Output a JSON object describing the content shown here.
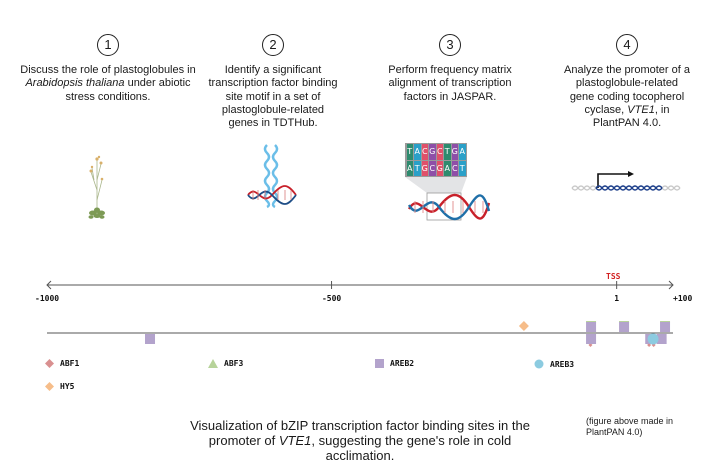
{
  "steps": [
    {
      "number": "1",
      "text_before": "Discuss the role of plastoglobules in ",
      "italic": "Arabidopsis thaliana",
      "text_after": " under abiotic stress conditions."
    },
    {
      "number": "2",
      "text_before": "Identify a significant transcription factor binding site motif in a set of plastoglobule-related genes in TDTHub.",
      "italic": "",
      "text_after": ""
    },
    {
      "number": "3",
      "text_before": "Perform frequency matrix alignment of transcription factors in JASPAR.",
      "italic": "",
      "text_after": ""
    },
    {
      "number": "4",
      "text_before": "Analyze the promoter of a plastoglobule-related gene coding tocopherol cyclase, ",
      "italic": "VTE1",
      "text_after": ", in PlantPAN 4.0."
    }
  ],
  "motif": {
    "top": [
      "T",
      "A",
      "C",
      "G",
      "C",
      "T",
      "G",
      "A"
    ],
    "bottom": [
      "A",
      "T",
      "G",
      "C",
      "G",
      "A",
      "C",
      "T"
    ],
    "colors": [
      "#2e8b6e",
      "#2aa0c8",
      "#e0506a",
      "#8e4fa8",
      "#e0506a",
      "#2e8b6e",
      "#8e4fa8",
      "#2aa0c8"
    ]
  },
  "chart_data": {
    "type": "scatter",
    "title": "",
    "xlabel": "",
    "ylabel": "",
    "xlim": [
      -1000,
      100
    ],
    "ticks": [
      {
        "value": -1000,
        "label": "-1000"
      },
      {
        "value": -500,
        "label": "-500"
      },
      {
        "value": 1,
        "label": "1"
      },
      {
        "value": 100,
        "label": "+100"
      }
    ],
    "tss_label": "TSS",
    "tss_position": 1,
    "series": [
      {
        "name": "ABF1",
        "shape": "diamond",
        "color": "#d99090",
        "sites": [
          {
            "pos": -45,
            "strand": "-"
          },
          {
            "pos": 58,
            "strand": "-"
          },
          {
            "pos": 66,
            "strand": "-"
          }
        ]
      },
      {
        "name": "ABF3",
        "shape": "triangle",
        "color": "#b7d39a",
        "sites": [
          {
            "pos": -44,
            "strand": "+"
          },
          {
            "pos": 14,
            "strand": "+"
          },
          {
            "pos": 86,
            "strand": "+"
          }
        ]
      },
      {
        "name": "AREB2",
        "shape": "square",
        "color": "#b3a3cc",
        "sites": [
          {
            "pos": -819,
            "strand": "-"
          },
          {
            "pos": -44,
            "strand": "+"
          },
          {
            "pos": -44,
            "strand": "-"
          },
          {
            "pos": 14,
            "strand": "+"
          },
          {
            "pos": 86,
            "strand": "+"
          },
          {
            "pos": 60,
            "strand": "-"
          },
          {
            "pos": 80,
            "strand": "-"
          }
        ]
      },
      {
        "name": "AREB3",
        "shape": "circle",
        "color": "#8ccbe0",
        "sites": [
          {
            "pos": 65,
            "strand": "-"
          }
        ]
      },
      {
        "name": "HY5",
        "shape": "diamond",
        "color": "#f6bd8a",
        "sites": [
          {
            "pos": -162,
            "strand": "+"
          }
        ]
      }
    ],
    "legend": [
      "ABF1",
      "ABF3",
      "AREB2",
      "AREB3",
      "HY5"
    ]
  },
  "caption": {
    "before": "Visualization of bZIP transcription factor binding sites in the promoter of ",
    "italic": "VTE1",
    "after": ", suggesting the gene's role in cold acclimation."
  },
  "note": "(figure above made in PlantPAN 4.0)"
}
